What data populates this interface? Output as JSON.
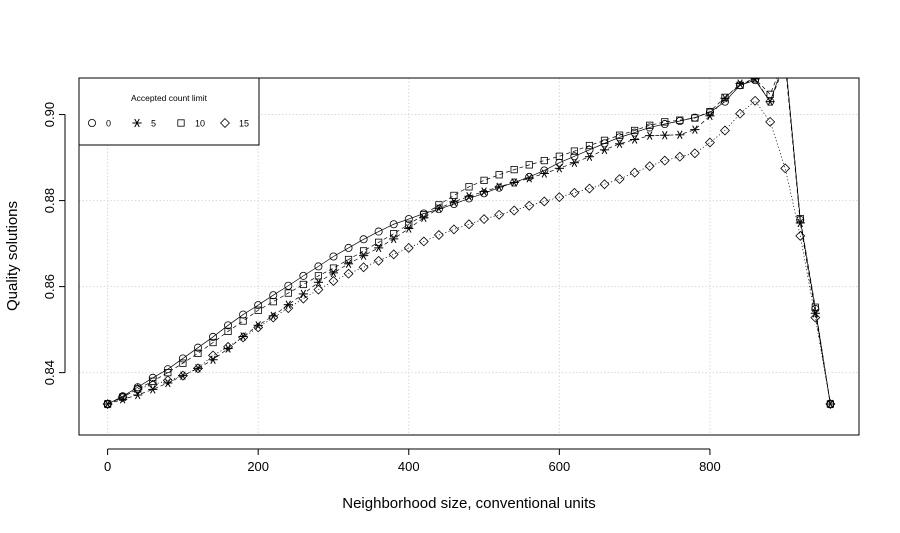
{
  "chart_data": {
    "type": "line",
    "title": "",
    "xlabel": "Neighborhood size, conventional units",
    "ylabel": "Quality solutions",
    "xlim": [
      -38,
      998
    ],
    "ylim": [
      0.8255,
      0.9085
    ],
    "xticks": [
      0,
      200,
      400,
      600,
      800
    ],
    "xtick_labels": [
      "0",
      "200",
      "400",
      "600",
      "800"
    ],
    "yticks": [
      0.84,
      0.86,
      0.88,
      0.9
    ],
    "ytick_labels": [
      "0.84",
      "0.86",
      "0.88",
      "0.90"
    ],
    "grid": true,
    "legend": {
      "title": "Accepted count limit",
      "position": "top-left",
      "entries": [
        "0",
        "5",
        "10",
        "15"
      ]
    },
    "x": [
      0,
      20,
      40,
      60,
      80,
      100,
      120,
      140,
      160,
      180,
      200,
      220,
      240,
      260,
      280,
      300,
      320,
      340,
      360,
      380,
      400,
      420,
      440,
      460,
      480,
      500,
      520,
      540,
      560,
      580,
      600,
      620,
      640,
      660,
      680,
      700,
      720,
      740,
      760,
      780,
      800,
      820,
      840,
      860,
      880,
      900,
      920,
      940,
      960
    ],
    "series": [
      {
        "name": "0",
        "marker": "circle",
        "line": "solid",
        "values": [
          0.8327,
          0.8345,
          0.8366,
          0.8388,
          0.8408,
          0.8433,
          0.8458,
          0.8483,
          0.851,
          0.8535,
          0.8557,
          0.858,
          0.8602,
          0.8625,
          0.8647,
          0.867,
          0.869,
          0.871,
          0.8728,
          0.8745,
          0.8757,
          0.877,
          0.878,
          0.8792,
          0.8805,
          0.8817,
          0.883,
          0.8842,
          0.8855,
          0.887,
          0.8888,
          0.8903,
          0.8918,
          0.8933,
          0.8947,
          0.8958,
          0.897,
          0.8978,
          0.8985,
          0.8993,
          0.9005,
          0.903,
          0.9068,
          0.908,
          0.903,
          0.913,
          0.8755,
          0.8548,
          0.8327
        ]
      },
      {
        "name": "5",
        "marker": "asterisk",
        "line": "dashed",
        "values": [
          0.8327,
          0.8338,
          0.8348,
          0.8361,
          0.8376,
          0.8393,
          0.841,
          0.843,
          0.8456,
          0.8484,
          0.851,
          0.8532,
          0.8558,
          0.8583,
          0.861,
          0.8632,
          0.8653,
          0.8672,
          0.869,
          0.8711,
          0.8735,
          0.876,
          0.8782,
          0.8797,
          0.881,
          0.8821,
          0.8832,
          0.8842,
          0.8852,
          0.8863,
          0.8875,
          0.8888,
          0.8902,
          0.8918,
          0.8932,
          0.8942,
          0.8951,
          0.8952,
          0.8953,
          0.8965,
          0.8997,
          0.9038,
          0.9072,
          0.9083,
          0.903,
          0.9118,
          0.8748,
          0.8538,
          0.8327
        ]
      },
      {
        "name": "10",
        "marker": "square",
        "line": "dashed",
        "values": [
          0.8327,
          0.8343,
          0.8362,
          0.838,
          0.84,
          0.8422,
          0.8445,
          0.847,
          0.8496,
          0.852,
          0.8545,
          0.8565,
          0.8585,
          0.8605,
          0.8625,
          0.8643,
          0.8663,
          0.8683,
          0.8703,
          0.8723,
          0.8745,
          0.8767,
          0.879,
          0.8812,
          0.8832,
          0.8847,
          0.886,
          0.8872,
          0.8883,
          0.8893,
          0.8903,
          0.8915,
          0.8928,
          0.894,
          0.8952,
          0.8963,
          0.8975,
          0.8983,
          0.8987,
          0.8992,
          0.9007,
          0.904,
          0.9068,
          0.9083,
          0.9047,
          0.9133,
          0.8758,
          0.8552,
          0.8327
        ]
      },
      {
        "name": "15",
        "marker": "diamond",
        "line": "dotted",
        "values": [
          0.8327,
          0.8343,
          0.8362,
          0.8372,
          0.8382,
          0.8393,
          0.841,
          0.844,
          0.846,
          0.8482,
          0.8505,
          0.8528,
          0.855,
          0.8572,
          0.8593,
          0.8613,
          0.863,
          0.8645,
          0.866,
          0.8675,
          0.869,
          0.8705,
          0.872,
          0.8733,
          0.8745,
          0.8757,
          0.8767,
          0.8777,
          0.8788,
          0.8798,
          0.8808,
          0.8818,
          0.8828,
          0.8838,
          0.885,
          0.8865,
          0.888,
          0.8893,
          0.8902,
          0.891,
          0.8935,
          0.8963,
          0.9002,
          0.9032,
          0.8983,
          0.8875,
          0.8718,
          0.8528,
          0.8327
        ]
      }
    ]
  }
}
